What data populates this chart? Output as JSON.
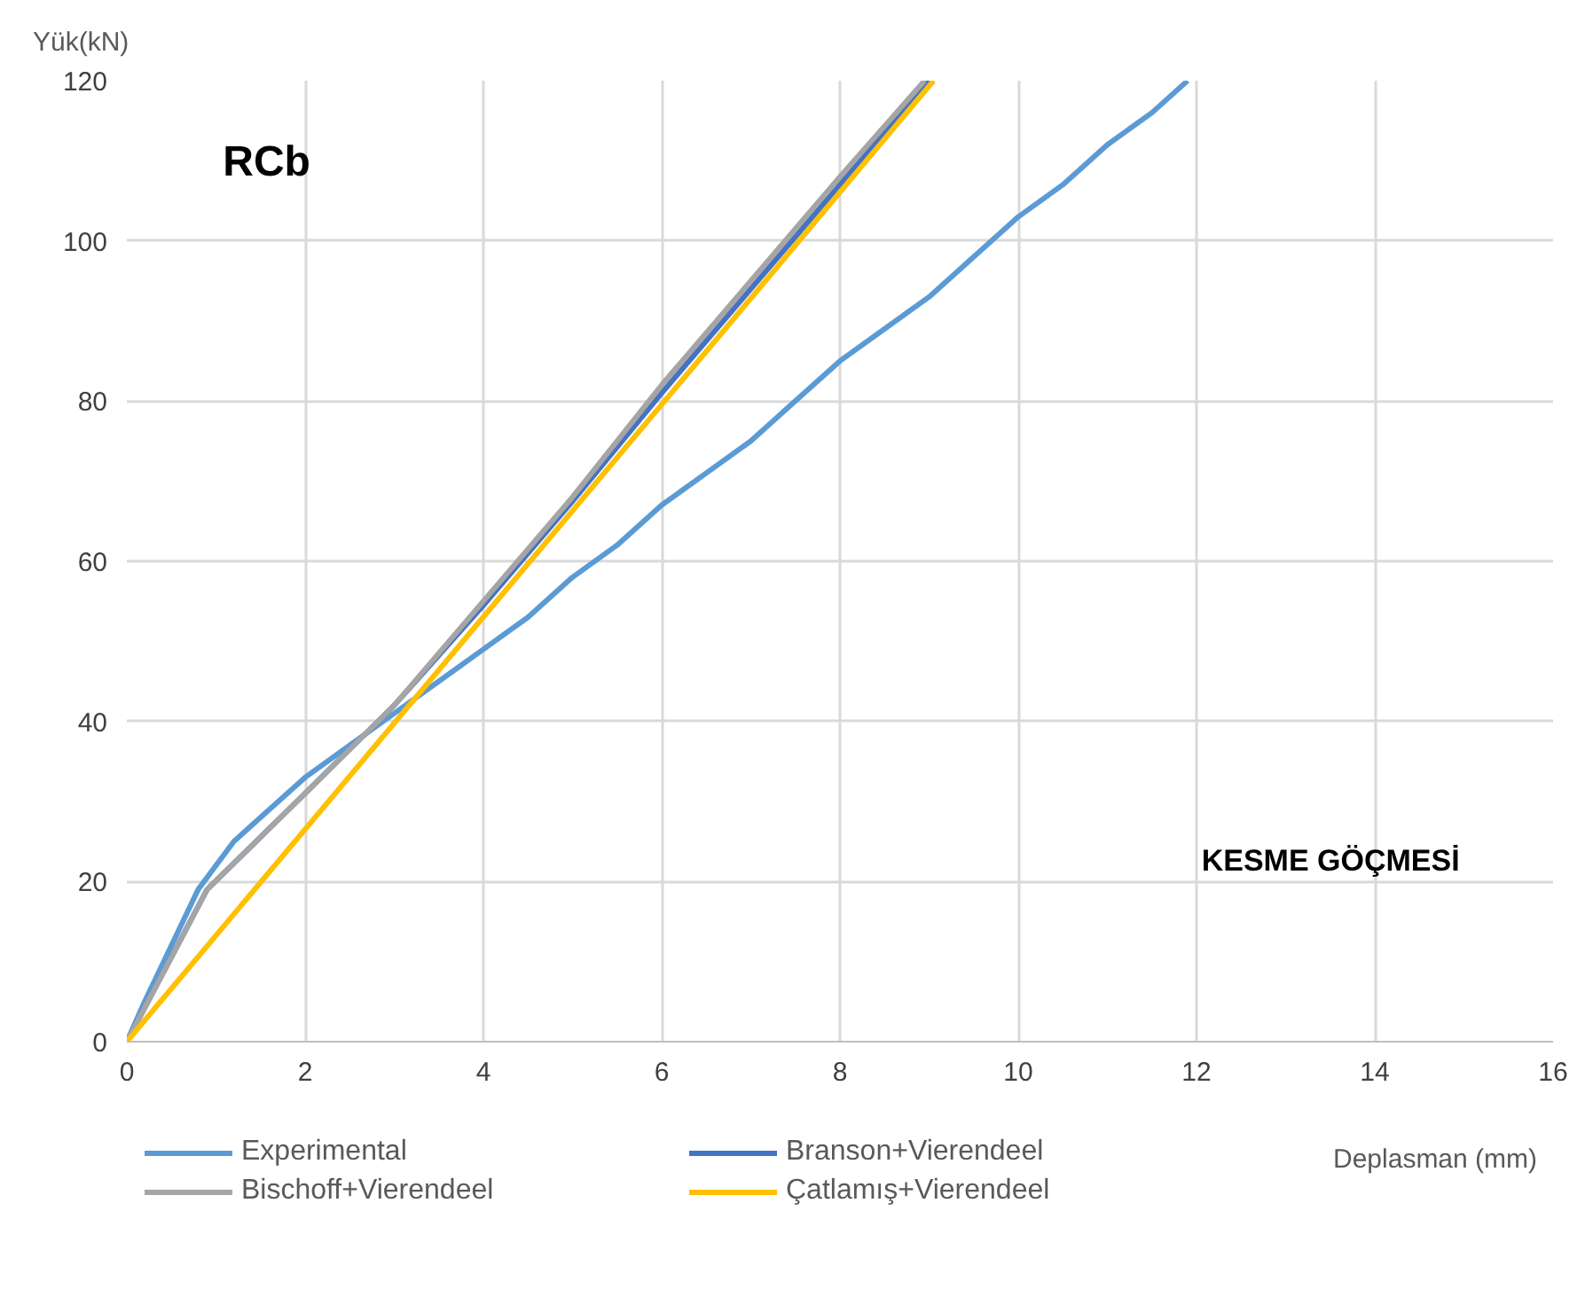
{
  "chart_data": {
    "type": "line",
    "xlabel": "Deplasman (mm)",
    "ylabel": "Yük(kN)",
    "annotations": [
      "RCb",
      "KESME GÖÇMESİ"
    ],
    "series": [
      {
        "name": "Experimental",
        "color": "#5b9bd5",
        "x": [
          0,
          0.2,
          0.5,
          0.8,
          1.0,
          1.2,
          1.5,
          2,
          2.5,
          3,
          3.5,
          4,
          4.5,
          5,
          5.5,
          6,
          6.5,
          7,
          7.5,
          8,
          8.5,
          9,
          9.5,
          10,
          10.5,
          11,
          11.5,
          11.9
        ],
        "values": [
          0,
          5,
          12,
          19,
          22,
          25,
          28,
          33,
          37,
          41,
          45,
          49,
          53,
          58,
          62,
          67,
          71,
          75,
          80,
          85,
          89,
          93,
          98,
          103,
          107,
          112,
          116,
          120
        ]
      },
      {
        "name": "Branson+Vierendeel",
        "color": "#4472c4",
        "x": [
          0,
          0.9,
          2,
          3,
          4,
          5,
          6,
          7,
          8,
          9
        ],
        "values": [
          0,
          19,
          31,
          42,
          54.5,
          67.5,
          81,
          94,
          107,
          120
        ]
      },
      {
        "name": "Bischoff+Vierendeel",
        "color": "#a5a5a5",
        "x": [
          0,
          0.9,
          2,
          3,
          4,
          5,
          6,
          7,
          8,
          8.95
        ],
        "values": [
          0,
          19,
          31,
          42,
          55,
          68,
          82,
          95,
          108,
          120
        ]
      },
      {
        "name": "Çatlamış+Vierendeel",
        "color": "#ffc000",
        "x": [
          0,
          9.05
        ],
        "values": [
          0,
          120
        ]
      }
    ],
    "xlim": [
      0,
      16
    ],
    "ylim": [
      0,
      120
    ],
    "xticks": [
      0,
      2,
      4,
      6,
      8,
      10,
      12,
      14,
      16
    ],
    "yticks": [
      0,
      20,
      40,
      60,
      80,
      100,
      120
    ],
    "grid": true,
    "legend": "bottom",
    "line_style": "solid",
    "marker": "none"
  }
}
